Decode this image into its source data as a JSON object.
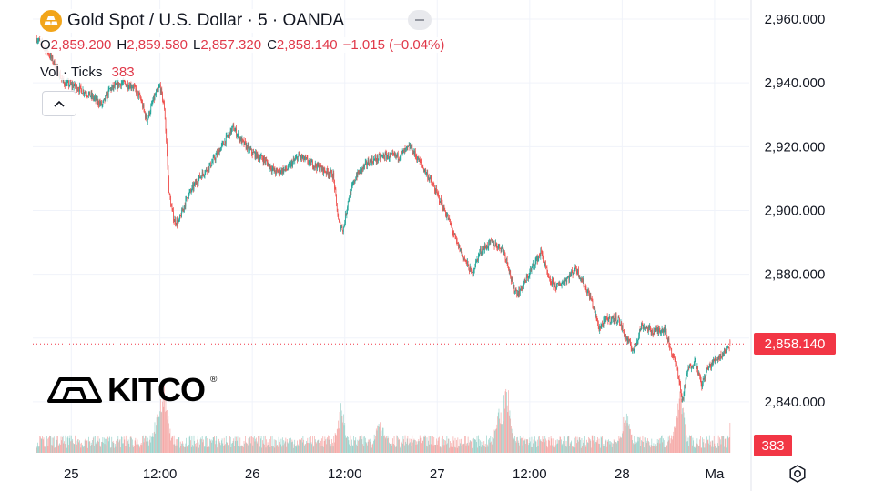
{
  "header": {
    "title": "Gold Spot / U.S. Dollar · 5 · OANDA",
    "ohlc": {
      "o_label": "O",
      "o_value": "2,859.200",
      "h_label": "H",
      "h_value": "2,859.580",
      "l_label": "L",
      "l_value": "2,857.320",
      "c_label": "C",
      "c_value": "2,858.140",
      "change": "−1.015 (−0.04%)"
    },
    "volume_label": "Vol · Ticks",
    "volume_value": "383"
  },
  "watermark": {
    "brand": "KITCO",
    "registered": "®"
  },
  "price_tag": "2,858.140",
  "volume_tag": "383",
  "colors": {
    "up": "#26a69a",
    "down": "#ef5350",
    "vol_up": "#9bd3cc",
    "vol_down": "#f5aaa8",
    "grid": "#f0f3fa",
    "price_line": "#f23645",
    "gold": "#f2a51a"
  },
  "chart_data": {
    "type": "candlestick",
    "title": "Gold Spot / U.S. Dollar · 5 · OANDA",
    "interval": "5",
    "ylim": [
      2824,
      2966
    ],
    "y_ticks": [
      "2,960.000",
      "2,940.000",
      "2,920.000",
      "2,900.000",
      "2,880.000",
      "2,860.000",
      "2,840.000"
    ],
    "y_tick_values": [
      2960,
      2940,
      2920,
      2900,
      2880,
      2860,
      2840
    ],
    "x_ticks": [
      "25",
      "12:00",
      "26",
      "12:00",
      "27",
      "12:00",
      "28",
      "Ma"
    ],
    "x_tick_positions": [
      0.5,
      12,
      24,
      36,
      48,
      60,
      72,
      84
    ],
    "x_range": [
      -4.5,
      88.5
    ],
    "current_price": 2858.14,
    "current_volume": 383,
    "price_path": [
      [
        -4,
        2954
      ],
      [
        -2.6,
        2950
      ],
      [
        -1.5,
        2945
      ],
      [
        -0.5,
        2940
      ],
      [
        1,
        2939
      ],
      [
        3,
        2936
      ],
      [
        4.5,
        2933
      ],
      [
        5.5,
        2938
      ],
      [
        7,
        2940
      ],
      [
        8.5,
        2939
      ],
      [
        9.5,
        2935
      ],
      [
        10.3,
        2928
      ],
      [
        11.2,
        2935
      ],
      [
        12,
        2939
      ],
      [
        12.6,
        2932
      ],
      [
        13.2,
        2905
      ],
      [
        13.8,
        2897
      ],
      [
        14.4,
        2896
      ],
      [
        15.5,
        2904
      ],
      [
        17,
        2910
      ],
      [
        18.5,
        2914
      ],
      [
        20,
        2920
      ],
      [
        21.5,
        2926
      ],
      [
        22.5,
        2922
      ],
      [
        24,
        2918
      ],
      [
        25.5,
        2916
      ],
      [
        27,
        2912
      ],
      [
        28.5,
        2913
      ],
      [
        30,
        2917
      ],
      [
        31.5,
        2915
      ],
      [
        33,
        2913
      ],
      [
        34.5,
        2911
      ],
      [
        35.2,
        2896
      ],
      [
        35.8,
        2894
      ],
      [
        36.5,
        2904
      ],
      [
        37.5,
        2911
      ],
      [
        39,
        2915
      ],
      [
        41,
        2917
      ],
      [
        43,
        2917
      ],
      [
        44.5,
        2920
      ],
      [
        46,
        2914
      ],
      [
        47,
        2910
      ],
      [
        48,
        2905
      ],
      [
        49.5,
        2897
      ],
      [
        50.5,
        2890
      ],
      [
        51.5,
        2885
      ],
      [
        52.5,
        2880
      ],
      [
        53.5,
        2887
      ],
      [
        55,
        2890
      ],
      [
        56.5,
        2888
      ],
      [
        57.2,
        2883
      ],
      [
        57.8,
        2876
      ],
      [
        58.5,
        2874
      ],
      [
        59.5,
        2878
      ],
      [
        60.5,
        2883
      ],
      [
        61.5,
        2887
      ],
      [
        62.5,
        2878
      ],
      [
        63.5,
        2876
      ],
      [
        65,
        2879
      ],
      [
        66,
        2882
      ],
      [
        67,
        2877
      ],
      [
        68,
        2872
      ],
      [
        69,
        2863
      ],
      [
        70,
        2866
      ],
      [
        71.5,
        2866
      ],
      [
        72.5,
        2860
      ],
      [
        73.5,
        2856
      ],
      [
        74.5,
        2864
      ],
      [
        76,
        2862
      ],
      [
        77.5,
        2863
      ],
      [
        78.5,
        2855
      ],
      [
        79.2,
        2850
      ],
      [
        79.8,
        2840
      ],
      [
        80.5,
        2850
      ],
      [
        81.5,
        2853
      ],
      [
        82.3,
        2845
      ],
      [
        83,
        2850
      ],
      [
        84,
        2853
      ],
      [
        85,
        2855
      ],
      [
        86,
        2858
      ]
    ],
    "volume_ylim": [
      0,
      1600
    ],
    "volume_spikes": [
      [
        12.5,
        1050
      ],
      [
        11.8,
        650
      ],
      [
        35.5,
        700
      ],
      [
        57,
        1050
      ],
      [
        56,
        700
      ],
      [
        72.5,
        650
      ],
      [
        79.5,
        950
      ],
      [
        40.5,
        550
      ]
    ],
    "volume_base": 150
  }
}
